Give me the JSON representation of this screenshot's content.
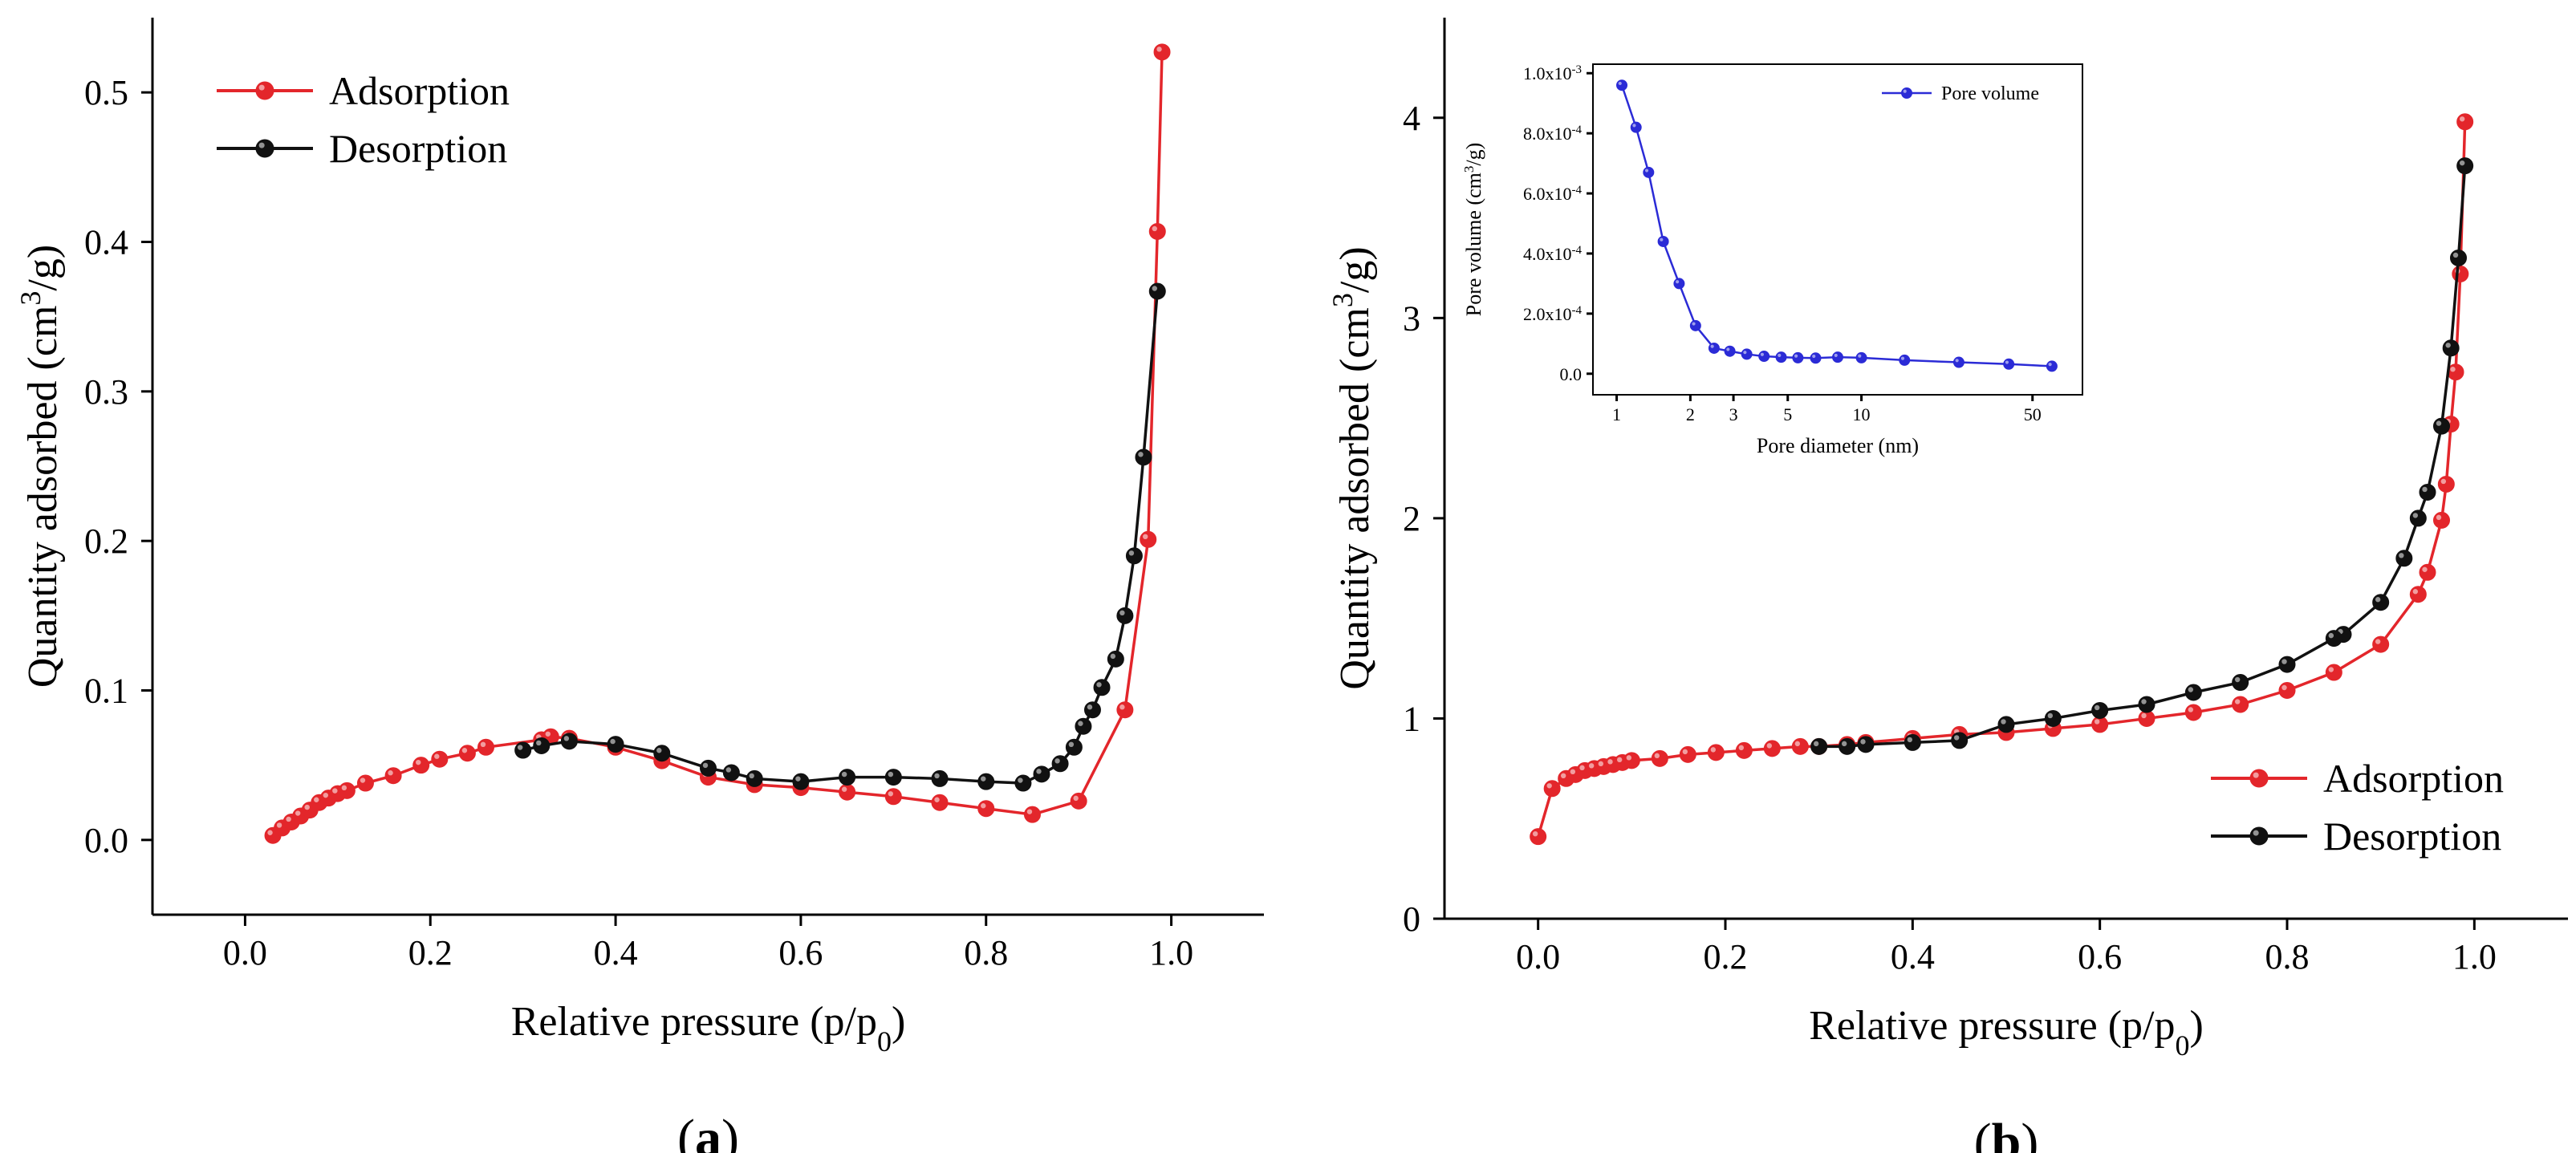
{
  "colors": {
    "adsorption": "#e3262b",
    "desorption": "#111111",
    "pore": "#2b2bd6"
  },
  "chart_data": [
    {
      "type": "line",
      "panel_label": "a",
      "xlabel": "Relative pressure (p/p",
      "xlabel_sub": "0",
      "xlabel_end": ")",
      "ylabel": "Quantity adsorbed (cm",
      "ylabel_sup": "3",
      "ylabel_end": "/g)",
      "xlim": [
        -0.1,
        1.1
      ],
      "ylim": [
        -0.05,
        0.55
      ],
      "xticks": [
        0.0,
        0.2,
        0.4,
        0.6,
        0.8,
        1.0
      ],
      "xtick_labels": [
        "0.0",
        "0.2",
        "0.4",
        "0.6",
        "0.8",
        "1.0"
      ],
      "yticks": [
        0.0,
        0.1,
        0.2,
        0.3,
        0.4,
        0.5
      ],
      "ytick_labels": [
        "0.0",
        "0.1",
        "0.2",
        "0.3",
        "0.4",
        "0.5"
      ],
      "legend_position": "top-left",
      "series": [
        {
          "name": "Adsorption",
          "color_key": "adsorption",
          "x": [
            0.03,
            0.04,
            0.05,
            0.06,
            0.07,
            0.08,
            0.09,
            0.1,
            0.11,
            0.13,
            0.16,
            0.19,
            0.21,
            0.24,
            0.26,
            0.32,
            0.33,
            0.35,
            0.4,
            0.45,
            0.5,
            0.55,
            0.6,
            0.65,
            0.7,
            0.75,
            0.8,
            0.85,
            0.9,
            0.95,
            0.975,
            0.985,
            0.99
          ],
          "y": [
            0.003,
            0.008,
            0.012,
            0.016,
            0.02,
            0.025,
            0.028,
            0.031,
            0.033,
            0.038,
            0.043,
            0.05,
            0.054,
            0.058,
            0.062,
            0.067,
            0.069,
            0.068,
            0.062,
            0.053,
            0.042,
            0.037,
            0.035,
            0.032,
            0.029,
            0.025,
            0.021,
            0.017,
            0.026,
            0.087,
            0.201,
            0.407,
            0.527
          ]
        },
        {
          "name": "Desorption",
          "color_key": "desorption",
          "x": [
            0.985,
            0.97,
            0.96,
            0.95,
            0.94,
            0.925,
            0.915,
            0.905,
            0.895,
            0.88,
            0.86,
            0.84,
            0.8,
            0.75,
            0.7,
            0.65,
            0.6,
            0.55,
            0.525,
            0.5,
            0.45,
            0.4,
            0.35,
            0.32,
            0.3
          ],
          "y": [
            0.367,
            0.256,
            0.19,
            0.15,
            0.121,
            0.102,
            0.087,
            0.076,
            0.062,
            0.051,
            0.044,
            0.038,
            0.039,
            0.041,
            0.042,
            0.042,
            0.039,
            0.041,
            0.045,
            0.048,
            0.058,
            0.064,
            0.066,
            0.063,
            0.06
          ]
        }
      ]
    },
    {
      "type": "line",
      "panel_label": "b",
      "xlabel": "Relative pressure (p/p",
      "xlabel_sub": "0",
      "xlabel_end": ")",
      "ylabel": "Quantity adsorbed (cm",
      "ylabel_sup": "3",
      "ylabel_end": "/g)",
      "xlim": [
        -0.1,
        1.1
      ],
      "ylim": [
        0,
        4.5
      ],
      "xticks": [
        0.0,
        0.2,
        0.4,
        0.6,
        0.8,
        1.0
      ],
      "xtick_labels": [
        "0.0",
        "0.2",
        "0.4",
        "0.6",
        "0.8",
        "1.0"
      ],
      "yticks": [
        0,
        1,
        2,
        3,
        4
      ],
      "ytick_labels": [
        "0",
        "1",
        "2",
        "3",
        "4"
      ],
      "legend_position": "bottom-right",
      "series": [
        {
          "name": "Adsorption",
          "color_key": "adsorption",
          "x": [
            0.0,
            0.015,
            0.03,
            0.04,
            0.05,
            0.06,
            0.07,
            0.08,
            0.09,
            0.1,
            0.13,
            0.16,
            0.19,
            0.22,
            0.25,
            0.28,
            0.3,
            0.33,
            0.35,
            0.4,
            0.45,
            0.5,
            0.55,
            0.6,
            0.65,
            0.7,
            0.75,
            0.8,
            0.85,
            0.9,
            0.94,
            0.95,
            0.965,
            0.97,
            0.975,
            0.98,
            0.985,
            0.99
          ],
          "y": [
            0.41,
            0.65,
            0.7,
            0.72,
            0.74,
            0.75,
            0.76,
            0.77,
            0.78,
            0.79,
            0.8,
            0.82,
            0.83,
            0.84,
            0.85,
            0.86,
            0.86,
            0.87,
            0.88,
            0.9,
            0.92,
            0.93,
            0.95,
            0.97,
            1.0,
            1.03,
            1.07,
            1.14,
            1.23,
            1.37,
            1.62,
            1.73,
            1.99,
            2.17,
            2.47,
            2.73,
            3.22,
            3.98
          ]
        },
        {
          "name": "Desorption",
          "color_key": "desorption",
          "x": [
            0.99,
            0.983,
            0.975,
            0.965,
            0.95,
            0.94,
            0.925,
            0.9,
            0.86,
            0.85,
            0.8,
            0.75,
            0.7,
            0.65,
            0.6,
            0.55,
            0.5,
            0.45,
            0.4,
            0.35,
            0.33,
            0.3
          ],
          "y": [
            3.76,
            3.3,
            2.85,
            2.46,
            2.13,
            2.0,
            1.8,
            1.58,
            1.42,
            1.4,
            1.27,
            1.18,
            1.13,
            1.07,
            1.04,
            1.0,
            0.97,
            0.89,
            0.88,
            0.87,
            0.86,
            0.86
          ]
        }
      ],
      "inset": {
        "type": "line",
        "xscale": "log",
        "xlabel": "Pore diameter (nm)",
        "ylabel": "Pore volume (cm",
        "ylabel_sup": "3",
        "ylabel_end": "/g)",
        "xlim": [
          0.8,
          80
        ],
        "ylim": [
          -7e-05,
          0.00103
        ],
        "xticks": [
          1,
          2,
          3,
          5,
          10,
          50
        ],
        "xtick_labels": [
          "1",
          "2",
          "3",
          "5",
          "10",
          "50"
        ],
        "yticks": [
          0.0,
          0.0002,
          0.0004,
          0.0006,
          0.0008,
          0.001
        ],
        "ytick_labels": [
          "0.0",
          "2.0x10",
          "4.0x10",
          "6.0x10",
          "8.0x10",
          "1.0x10"
        ],
        "ytick_exps": [
          "",
          "-4",
          "-4",
          "-4",
          "-4",
          "-3"
        ],
        "legend_position": "top-right",
        "series": [
          {
            "name": "Pore volume",
            "color_key": "pore",
            "x": [
              1.05,
              1.2,
              1.35,
              1.55,
              1.8,
              2.1,
              2.5,
              2.9,
              3.4,
              4.0,
              4.7,
              5.5,
              6.5,
              8.0,
              10.0,
              15.0,
              25.0,
              40.0,
              60.0
            ],
            "y": [
              0.00096,
              0.00082,
              0.00067,
              0.00044,
              0.0003,
              0.00016,
              8.5e-05,
              7.5e-05,
              6.5e-05,
              5.8e-05,
              5.5e-05,
              5.3e-05,
              5.2e-05,
              5.5e-05,
              5.3e-05,
              4.5e-05,
              3.8e-05,
              3.2e-05,
              2.5e-05
            ]
          }
        ]
      }
    }
  ]
}
